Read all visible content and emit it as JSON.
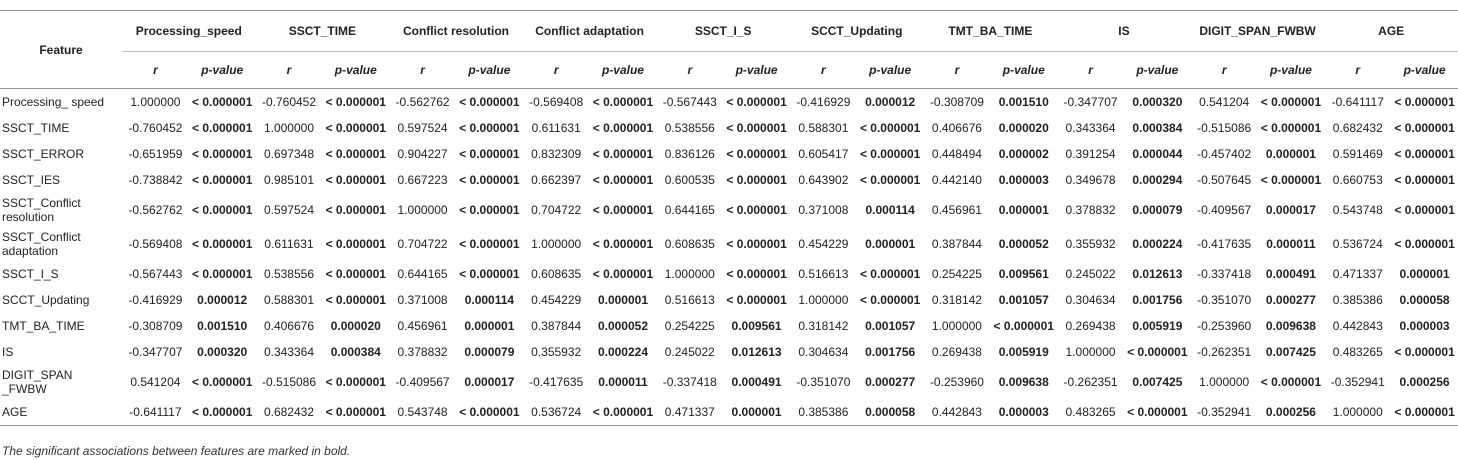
{
  "table": {
    "feature_header": "Feature",
    "columns": [
      "Processing_speed",
      "SSCT_TIME",
      "Conflict resolution",
      "Conflict adaptation",
      "SSCT_I_S",
      "SCCT_Updating",
      "TMT_BA_TIME",
      "IS",
      "DIGIT_SPAN_FWBW",
      "AGE"
    ],
    "subheaders": [
      "r",
      "p-value"
    ],
    "rows": [
      [
        "Processing_ speed",
        "1.000000",
        "< 0.000001",
        "-0.760452",
        "< 0.000001",
        "-0.562762",
        "< 0.000001",
        "-0.569408",
        "< 0.000001",
        "-0.567443",
        "< 0.000001",
        "-0.416929",
        "0.000012",
        "-0.308709",
        "0.001510",
        "-0.347707",
        "0.000320",
        "0.541204",
        "< 0.000001",
        "-0.641117",
        "< 0.000001"
      ],
      [
        "SSCT_TIME",
        "-0.760452",
        "< 0.000001",
        "1.000000",
        "< 0.000001",
        "0.597524",
        "< 0.000001",
        "0.611631",
        "< 0.000001",
        "0.538556",
        "< 0.000001",
        "0.588301",
        "< 0.000001",
        "0.406676",
        "0.000020",
        "0.343364",
        "0.000384",
        "-0.515086",
        "< 0.000001",
        "0.682432",
        "< 0.000001"
      ],
      [
        "SSCT_ERROR",
        "-0.651959",
        "< 0.000001",
        "0.697348",
        "< 0.000001",
        "0.904227",
        "< 0.000001",
        "0.832309",
        "< 0.000001",
        "0.836126",
        "< 0.000001",
        "0.605417",
        "< 0.000001",
        "0.448494",
        "0.000002",
        "0.391254",
        "0.000044",
        "-0.457402",
        "0.000001",
        "0.591469",
        "< 0.000001"
      ],
      [
        "SSCT_IES",
        "-0.738842",
        "< 0.000001",
        "0.985101",
        "< 0.000001",
        "0.667223",
        "< 0.000001",
        "0.662397",
        "< 0.000001",
        "0.600535",
        "< 0.000001",
        "0.643902",
        "< 0.000001",
        "0.442140",
        "0.000003",
        "0.349678",
        "0.000294",
        "-0.507645",
        "< 0.000001",
        "0.660753",
        "< 0.000001"
      ],
      [
        "SSCT_Conflict resolution",
        "-0.562762",
        "< 0.000001",
        "0.597524",
        "< 0.000001",
        "1.000000",
        "< 0.000001",
        "0.704722",
        "< 0.000001",
        "0.644165",
        "< 0.000001",
        "0.371008",
        "0.000114",
        "0.456961",
        "0.000001",
        "0.378832",
        "0.000079",
        "-0.409567",
        "0.000017",
        "0.543748",
        "< 0.000001"
      ],
      [
        "SSCT_Conflict adaptation",
        "-0.569408",
        "< 0.000001",
        "0.611631",
        "< 0.000001",
        "0.704722",
        "< 0.000001",
        "1.000000",
        "< 0.000001",
        "0.608635",
        "< 0.000001",
        "0.454229",
        "0.000001",
        "0.387844",
        "0.000052",
        "0.355932",
        "0.000224",
        "-0.417635",
        "0.000011",
        "0.536724",
        "< 0.000001"
      ],
      [
        "SSCT_I_S",
        "-0.567443",
        "< 0.000001",
        "0.538556",
        "< 0.000001",
        "0.644165",
        "< 0.000001",
        "0.608635",
        "< 0.000001",
        "1.000000",
        "< 0.000001",
        "0.516613",
        "< 0.000001",
        "0.254225",
        "0.009561",
        "0.245022",
        "0.012613",
        "-0.337418",
        "0.000491",
        "0.471337",
        "0.000001"
      ],
      [
        "SCCT_Updating",
        "-0.416929",
        "0.000012",
        "0.588301",
        "< 0.000001",
        "0.371008",
        "0.000114",
        "0.454229",
        "0.000001",
        "0.516613",
        "< 0.000001",
        "1.000000",
        "< 0.000001",
        "0.318142",
        "0.001057",
        "0.304634",
        "0.001756",
        "-0.351070",
        "0.000277",
        "0.385386",
        "0.000058"
      ],
      [
        "TMT_BA_TIME",
        "-0.308709",
        "0.001510",
        "0.406676",
        "0.000020",
        "0.456961",
        "0.000001",
        "0.387844",
        "0.000052",
        "0.254225",
        "0.009561",
        "0.318142",
        "0.001057",
        "1.000000",
        "< 0.000001",
        "0.269438",
        "0.005919",
        "-0.253960",
        "0.009638",
        "0.442843",
        "0.000003"
      ],
      [
        "IS",
        "-0.347707",
        "0.000320",
        "0.343364",
        "0.000384",
        "0.378832",
        "0.000079",
        "0.355932",
        "0.000224",
        "0.245022",
        "0.012613",
        "0.304634",
        "0.001756",
        "0.269438",
        "0.005919",
        "1.000000",
        "< 0.000001",
        "-0.262351",
        "0.007425",
        "0.483265",
        "< 0.000001"
      ],
      [
        "DIGIT_SPAN _FWBW",
        "0.541204",
        "< 0.000001",
        "-0.515086",
        "< 0.000001",
        "-0.409567",
        "0.000017",
        "-0.417635",
        "0.000011",
        "-0.337418",
        "0.000491",
        "-0.351070",
        "0.000277",
        "-0.253960",
        "0.009638",
        "-0.262351",
        "0.007425",
        "1.000000",
        "< 0.000001",
        "-0.352941",
        "0.000256"
      ],
      [
        "AGE",
        "-0.641117",
        "< 0.000001",
        "0.682432",
        "< 0.000001",
        "0.543748",
        "< 0.000001",
        "0.536724",
        "< 0.000001",
        "0.471337",
        "0.000001",
        "0.385386",
        "0.000058",
        "0.442843",
        "0.000003",
        "0.483265",
        "< 0.000001",
        "-0.352941",
        "0.000256",
        "1.000000",
        "< 0.000001"
      ]
    ]
  },
  "footnote": "The significant associations between features are marked in bold."
}
